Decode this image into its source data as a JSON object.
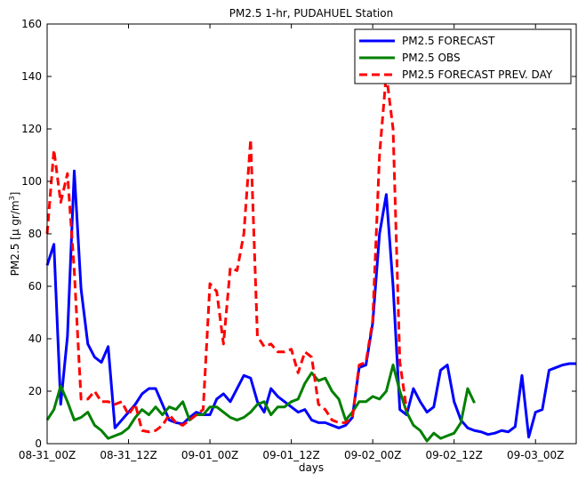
{
  "chart_data": {
    "type": "line",
    "title": "PM2.5 1-hr, PUDAHUEL Station",
    "xlabel": "days",
    "ylabel_main": "PM2.5 [μ gr/m",
    "ylabel_sup": "3",
    "ylabel_close": "]",
    "xlim": [
      0,
      78
    ],
    "ylim": [
      0,
      160
    ],
    "x_unit": "hours since 08-31 00Z",
    "x_ticks": [
      {
        "value": 0,
        "label": "08-31_00Z"
      },
      {
        "value": 12,
        "label": "08-31_12Z"
      },
      {
        "value": 24,
        "label": "09-01_00Z"
      },
      {
        "value": 36,
        "label": "09-01_12Z"
      },
      {
        "value": 48,
        "label": "09-02_00Z"
      },
      {
        "value": 60,
        "label": "09-02_12Z"
      },
      {
        "value": 72,
        "label": "09-03_00Z"
      }
    ],
    "y_ticks": [
      0,
      20,
      40,
      60,
      80,
      100,
      120,
      140,
      160
    ],
    "legend_position": "top-right",
    "grid": false,
    "series": [
      {
        "name": "PM2.5 FORECAST",
        "color": "#0000ff",
        "style": "solid",
        "points": [
          [
            0,
            68
          ],
          [
            1,
            76
          ],
          [
            2,
            15
          ],
          [
            3,
            41
          ],
          [
            4,
            104
          ],
          [
            5,
            59
          ],
          [
            6,
            38
          ],
          [
            7,
            33
          ],
          [
            8,
            31
          ],
          [
            9,
            37
          ],
          [
            10,
            6
          ],
          [
            11,
            9
          ],
          [
            12,
            12
          ],
          [
            13,
            15
          ],
          [
            14,
            19
          ],
          [
            15,
            21
          ],
          [
            16,
            21
          ],
          [
            17,
            15
          ],
          [
            18,
            9
          ],
          [
            19,
            8
          ],
          [
            20,
            7.5
          ],
          [
            21,
            10
          ],
          [
            22,
            12
          ],
          [
            23,
            11
          ],
          [
            24,
            11
          ],
          [
            25,
            17
          ],
          [
            26,
            19
          ],
          [
            27,
            16
          ],
          [
            28,
            21
          ],
          [
            29,
            26
          ],
          [
            30,
            25
          ],
          [
            31,
            16
          ],
          [
            32,
            12
          ],
          [
            33,
            21
          ],
          [
            34,
            18
          ],
          [
            35,
            16
          ],
          [
            36,
            14
          ],
          [
            37,
            12
          ],
          [
            38,
            13
          ],
          [
            39,
            9
          ],
          [
            40,
            8
          ],
          [
            41,
            8
          ],
          [
            42,
            7
          ],
          [
            43,
            6
          ],
          [
            44,
            7
          ],
          [
            45,
            10
          ],
          [
            46,
            29
          ],
          [
            47,
            30
          ],
          [
            48,
            46
          ],
          [
            49,
            80
          ],
          [
            50,
            95
          ],
          [
            51,
            60
          ],
          [
            52,
            13
          ],
          [
            53,
            11
          ],
          [
            54,
            21
          ],
          [
            55,
            16
          ],
          [
            56,
            12
          ],
          [
            57,
            14
          ],
          [
            58,
            28
          ],
          [
            59,
            30
          ],
          [
            60,
            16
          ],
          [
            61,
            9
          ],
          [
            62,
            6
          ],
          [
            63,
            5
          ],
          [
            64,
            4.5
          ],
          [
            65,
            3.5
          ],
          [
            66,
            4
          ],
          [
            67,
            5
          ],
          [
            68,
            4.5
          ],
          [
            69,
            6.5
          ],
          [
            70,
            26
          ],
          [
            71,
            2.5
          ],
          [
            72,
            12
          ],
          [
            73,
            13
          ],
          [
            74,
            28
          ],
          [
            75,
            29
          ],
          [
            76,
            30
          ],
          [
            77,
            30.5
          ],
          [
            78,
            30.5
          ]
        ]
      },
      {
        "name": "PM2.5 OBS",
        "color": "#008000",
        "style": "solid",
        "points": [
          [
            0,
            9
          ],
          [
            1,
            13
          ],
          [
            2,
            22
          ],
          [
            3,
            16
          ],
          [
            4,
            9
          ],
          [
            5,
            10
          ],
          [
            6,
            12
          ],
          [
            7,
            7
          ],
          [
            8,
            5
          ],
          [
            9,
            2
          ],
          [
            10,
            3
          ],
          [
            11,
            4
          ],
          [
            12,
            6
          ],
          [
            13,
            10
          ],
          [
            14,
            13
          ],
          [
            15,
            11
          ],
          [
            16,
            14
          ],
          [
            17,
            11
          ],
          [
            18,
            14
          ],
          [
            19,
            13
          ],
          [
            20,
            16
          ],
          [
            21,
            9
          ],
          [
            22,
            11
          ],
          [
            23,
            11
          ],
          [
            24,
            14
          ],
          [
            25,
            14
          ],
          [
            26,
            12
          ],
          [
            27,
            10
          ],
          [
            28,
            9
          ],
          [
            29,
            10
          ],
          [
            30,
            12
          ],
          [
            31,
            15
          ],
          [
            32,
            16
          ],
          [
            33,
            11
          ],
          [
            34,
            14
          ],
          [
            35,
            14
          ],
          [
            36,
            16
          ],
          [
            37,
            17
          ],
          [
            38,
            23
          ],
          [
            39,
            27
          ],
          [
            40,
            24
          ],
          [
            41,
            25
          ],
          [
            42,
            20
          ],
          [
            43,
            17
          ],
          [
            44,
            9
          ],
          [
            45,
            12
          ],
          [
            46,
            16
          ],
          [
            47,
            16
          ],
          [
            48,
            18
          ],
          [
            49,
            17
          ],
          [
            50,
            20
          ],
          [
            51,
            30
          ],
          [
            52,
            20
          ],
          [
            53,
            12
          ],
          [
            54,
            7
          ],
          [
            55,
            5
          ],
          [
            56,
            1
          ],
          [
            57,
            4
          ],
          [
            58,
            2
          ],
          [
            59,
            3
          ],
          [
            60,
            4
          ],
          [
            61,
            8
          ],
          [
            62,
            21
          ],
          [
            63,
            15.5
          ]
        ]
      },
      {
        "name": "PM2.5 FORECAST PREV. DAY",
        "color": "#ff0000",
        "style": "dashed",
        "points": [
          [
            0,
            80
          ],
          [
            1,
            112
          ],
          [
            2,
            92
          ],
          [
            3,
            103
          ],
          [
            4,
            66
          ],
          [
            5,
            17
          ],
          [
            6,
            17
          ],
          [
            7,
            20
          ],
          [
            8,
            16
          ],
          [
            9,
            16
          ],
          [
            10,
            15
          ],
          [
            11,
            16
          ],
          [
            12,
            11
          ],
          [
            13,
            15
          ],
          [
            14,
            5
          ],
          [
            15,
            4.5
          ],
          [
            16,
            5
          ],
          [
            17,
            7
          ],
          [
            18,
            11
          ],
          [
            19,
            8
          ],
          [
            20,
            7
          ],
          [
            21,
            9
          ],
          [
            22,
            11
          ],
          [
            23,
            13
          ],
          [
            24,
            61
          ],
          [
            25,
            58
          ],
          [
            26,
            38
          ],
          [
            27,
            67
          ],
          [
            28,
            66
          ],
          [
            29,
            80
          ],
          [
            30,
            116
          ],
          [
            31,
            41
          ],
          [
            32,
            37
          ],
          [
            33,
            38
          ],
          [
            34,
            35
          ],
          [
            35,
            35
          ],
          [
            36,
            36
          ],
          [
            37,
            27
          ],
          [
            38,
            35
          ],
          [
            39,
            33
          ],
          [
            40,
            15
          ],
          [
            41,
            13
          ],
          [
            42,
            9
          ],
          [
            43,
            8
          ],
          [
            44,
            8
          ],
          [
            45,
            10
          ],
          [
            46,
            30
          ],
          [
            47,
            31
          ],
          [
            48,
            47
          ],
          [
            49,
            110
          ],
          [
            50,
            141
          ],
          [
            51,
            120
          ],
          [
            52,
            31
          ],
          [
            53,
            13
          ]
        ]
      }
    ]
  }
}
